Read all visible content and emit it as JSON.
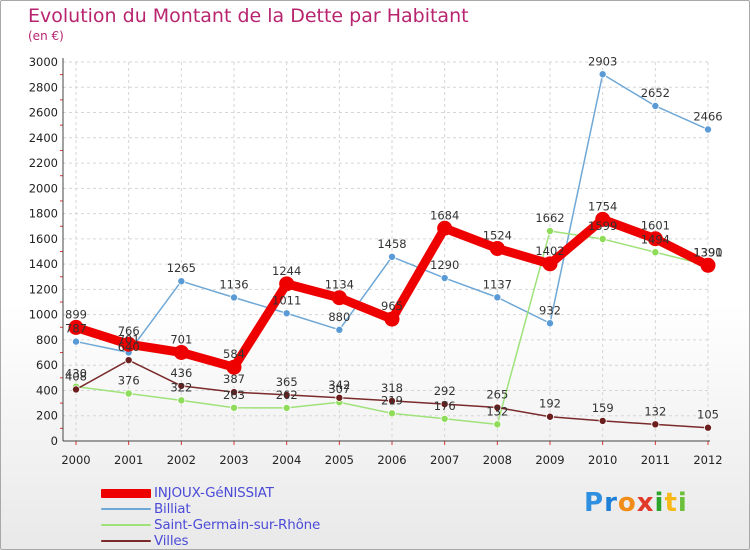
{
  "title": "Evolution du Montant de la Dette par Habitant",
  "subtitle": "(en €)",
  "logo_text": "Proxiti",
  "chart_data": {
    "type": "line",
    "title": "Evolution du Montant de la Dette par Habitant",
    "ylabel": "(en €)",
    "ylim": [
      0,
      3000
    ],
    "yticks": [
      0,
      200,
      400,
      600,
      800,
      1000,
      1200,
      1400,
      1600,
      1800,
      2000,
      2200,
      2400,
      2600,
      2800,
      3000
    ],
    "categories": [
      "2000",
      "2001",
      "2002",
      "2003",
      "2004",
      "2005",
      "2006",
      "2007",
      "2008",
      "2009",
      "2010",
      "2011",
      "2012"
    ],
    "legend_position": "bottom-left",
    "series": [
      {
        "name": "INJOUX-GéNISSIAT",
        "color": "#ee0000",
        "point_color": "#ee0000",
        "values": [
          899,
          766,
          701,
          584,
          1244,
          1134,
          965,
          1684,
          1524,
          1402,
          1754,
          1601,
          1391
        ]
      },
      {
        "name": "Billiat",
        "color": "#6fa8d6",
        "point_color": "#5b9bd5",
        "values": [
          787,
          701,
          1265,
          1136,
          1011,
          880,
          1458,
          1290,
          1137,
          932,
          2903,
          2652,
          2466
        ]
      },
      {
        "name": "Saint-Germain-sur-Rhône",
        "color": "#9fe27a",
        "point_color": "#8fdc5a",
        "values": [
          430,
          376,
          322,
          263,
          262,
          307,
          219,
          176,
          132,
          1662,
          1599,
          1494,
          1390
        ]
      },
      {
        "name": "Villes",
        "color": "#7a2a2a",
        "point_color": "#6b1e1e",
        "values": [
          408,
          640,
          436,
          387,
          365,
          342,
          318,
          292,
          265,
          192,
          159,
          132,
          105
        ]
      }
    ]
  }
}
